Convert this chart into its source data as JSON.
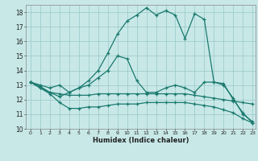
{
  "x": [
    0,
    1,
    2,
    3,
    4,
    5,
    6,
    7,
    8,
    9,
    10,
    11,
    12,
    13,
    14,
    15,
    16,
    17,
    18,
    19,
    20,
    21,
    22,
    23
  ],
  "line1_main": [
    13.2,
    13.0,
    12.8,
    13.0,
    12.5,
    12.8,
    13.3,
    14.0,
    15.2,
    16.5,
    17.4,
    17.8,
    18.3,
    17.8,
    18.1,
    17.8,
    16.2,
    17.9,
    17.5,
    13.2,
    13.1,
    12.0,
    11.1,
    10.4
  ],
  "line2_mid": [
    13.2,
    12.9,
    12.5,
    12.2,
    12.5,
    12.8,
    13.0,
    13.5,
    14.0,
    15.0,
    14.8,
    13.3,
    12.5,
    12.5,
    12.8,
    13.0,
    12.8,
    12.5,
    13.2,
    13.2,
    13.0,
    12.1,
    11.0,
    10.5
  ],
  "line3_flat1": [
    13.2,
    12.8,
    12.5,
    12.4,
    12.3,
    12.3,
    12.3,
    12.4,
    12.4,
    12.4,
    12.4,
    12.4,
    12.4,
    12.4,
    12.4,
    12.4,
    12.4,
    12.3,
    12.2,
    12.1,
    12.0,
    11.9,
    11.8,
    11.7
  ],
  "line4_flat2": [
    13.2,
    12.8,
    12.4,
    11.8,
    11.4,
    11.4,
    11.5,
    11.5,
    11.6,
    11.7,
    11.7,
    11.7,
    11.8,
    11.8,
    11.8,
    11.8,
    11.8,
    11.7,
    11.6,
    11.5,
    11.3,
    11.1,
    10.7,
    10.4
  ],
  "color": "#1a7a6e",
  "bg_color": "#c8e8e8",
  "grid_color": "#a0cccc",
  "xlabel": "Humidex (Indice chaleur)",
  "ylim": [
    10,
    18.5
  ],
  "xlim": [
    -0.5,
    23.3
  ],
  "yticks": [
    10,
    11,
    12,
    13,
    14,
    15,
    16,
    17,
    18
  ],
  "xticks": [
    0,
    1,
    2,
    3,
    4,
    5,
    6,
    7,
    8,
    9,
    10,
    11,
    12,
    13,
    14,
    15,
    16,
    17,
    18,
    19,
    20,
    21,
    22,
    23
  ]
}
